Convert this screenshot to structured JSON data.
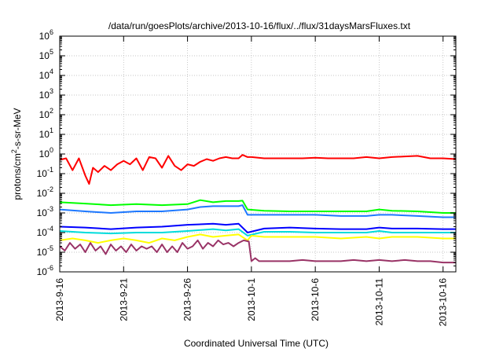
{
  "chart_data": {
    "type": "line",
    "title": "/data/run/goesPlots/archive/2013-10-16/flux/../flux/31daysMarsFluxes.txt",
    "xlabel": "Coordinated Universal Time (UTC)",
    "ylabel_main": "protons/cm",
    "ylabel_sup": "2",
    "ylabel_rest": "-s-sr-MeV",
    "yscale": "log",
    "ylim_exp": [
      -6,
      6
    ],
    "y_ticks": [
      {
        "base": "10",
        "exp": "-6"
      },
      {
        "base": "10",
        "exp": "-5"
      },
      {
        "base": "10",
        "exp": "-4"
      },
      {
        "base": "10",
        "exp": "-3"
      },
      {
        "base": "10",
        "exp": "-2"
      },
      {
        "base": "10",
        "exp": "-1"
      },
      {
        "base": "10",
        "exp": "0"
      },
      {
        "base": "10",
        "exp": "1"
      },
      {
        "base": "10",
        "exp": "2"
      },
      {
        "base": "10",
        "exp": "3"
      },
      {
        "base": "10",
        "exp": "4"
      },
      {
        "base": "10",
        "exp": "5"
      },
      {
        "base": "10",
        "exp": "6"
      }
    ],
    "x_range_days": [
      0,
      31
    ],
    "x_ticks": [
      {
        "label": "2013-9-16",
        "day": 0
      },
      {
        "label": "2013-9-21",
        "day": 5
      },
      {
        "label": "2013-9-26",
        "day": 10
      },
      {
        "label": "2013-10-1",
        "day": 15
      },
      {
        "label": "2013-10-6",
        "day": 20
      },
      {
        "label": "2013-10-11",
        "day": 25
      },
      {
        "label": "2013-10-16",
        "day": 30
      }
    ],
    "grid": true,
    "series": [
      {
        "color": "#ff0000",
        "points": [
          [
            0,
            0.5
          ],
          [
            0.5,
            0.6
          ],
          [
            1,
            0.15
          ],
          [
            1.5,
            0.6
          ],
          [
            2,
            0.08
          ],
          [
            2.3,
            0.03
          ],
          [
            2.6,
            0.2
          ],
          [
            3,
            0.12
          ],
          [
            3.5,
            0.25
          ],
          [
            4,
            0.15
          ],
          [
            4.5,
            0.3
          ],
          [
            5,
            0.45
          ],
          [
            5.5,
            0.3
          ],
          [
            6,
            0.6
          ],
          [
            6.5,
            0.15
          ],
          [
            7,
            0.7
          ],
          [
            7.5,
            0.6
          ],
          [
            8,
            0.2
          ],
          [
            8.5,
            0.8
          ],
          [
            9,
            0.25
          ],
          [
            9.5,
            0.15
          ],
          [
            10,
            0.3
          ],
          [
            10.5,
            0.25
          ],
          [
            11,
            0.4
          ],
          [
            11.5,
            0.55
          ],
          [
            12,
            0.45
          ],
          [
            12.5,
            0.6
          ],
          [
            13,
            0.7
          ],
          [
            13.5,
            0.6
          ],
          [
            14,
            0.6
          ],
          [
            14.3,
            0.9
          ],
          [
            14.7,
            0.7
          ],
          [
            15,
            0.7
          ],
          [
            16,
            0.6
          ],
          [
            17,
            0.6
          ],
          [
            18,
            0.6
          ],
          [
            19,
            0.6
          ],
          [
            20,
            0.65
          ],
          [
            21,
            0.6
          ],
          [
            22,
            0.6
          ],
          [
            23,
            0.6
          ],
          [
            24,
            0.7
          ],
          [
            25,
            0.6
          ],
          [
            26,
            0.7
          ],
          [
            27,
            0.75
          ],
          [
            28,
            0.8
          ],
          [
            29,
            0.6
          ],
          [
            30,
            0.6
          ],
          [
            31,
            0.55
          ]
        ]
      },
      {
        "color": "#00ff00",
        "points": [
          [
            0,
            0.0035
          ],
          [
            2,
            0.003
          ],
          [
            4,
            0.0025
          ],
          [
            6,
            0.0028
          ],
          [
            8,
            0.0025
          ],
          [
            10,
            0.0028
          ],
          [
            11,
            0.0045
          ],
          [
            12,
            0.0035
          ],
          [
            13,
            0.004
          ],
          [
            14,
            0.004
          ],
          [
            14.3,
            0.0042
          ],
          [
            14.7,
            0.0015
          ],
          [
            16,
            0.0013
          ],
          [
            18,
            0.0012
          ],
          [
            20,
            0.0012
          ],
          [
            22,
            0.0012
          ],
          [
            24,
            0.0012
          ],
          [
            25,
            0.0015
          ],
          [
            26,
            0.0013
          ],
          [
            28,
            0.0012
          ],
          [
            30,
            0.001
          ],
          [
            31,
            0.001
          ]
        ]
      },
      {
        "color": "#1e78ff",
        "points": [
          [
            0,
            0.0015
          ],
          [
            2,
            0.0012
          ],
          [
            4,
            0.001
          ],
          [
            6,
            0.0012
          ],
          [
            8,
            0.0012
          ],
          [
            10,
            0.0015
          ],
          [
            11,
            0.002
          ],
          [
            12,
            0.0022
          ],
          [
            13,
            0.0022
          ],
          [
            14,
            0.0022
          ],
          [
            14.3,
            0.0025
          ],
          [
            14.7,
            0.0008
          ],
          [
            16,
            0.0008
          ],
          [
            18,
            0.0008
          ],
          [
            20,
            0.0008
          ],
          [
            22,
            0.0007
          ],
          [
            24,
            0.0007
          ],
          [
            25,
            0.0008
          ],
          [
            26,
            0.0008
          ],
          [
            28,
            0.0007
          ],
          [
            30,
            0.0006
          ],
          [
            31,
            0.0006
          ]
        ]
      },
      {
        "color": "#0000ff",
        "points": [
          [
            0,
            0.0002
          ],
          [
            2,
            0.00018
          ],
          [
            4,
            0.00015
          ],
          [
            6,
            0.00018
          ],
          [
            8,
            0.0002
          ],
          [
            10,
            0.00025
          ],
          [
            12,
            0.00028
          ],
          [
            13,
            0.00025
          ],
          [
            14,
            0.00028
          ],
          [
            14.7,
            0.0001
          ],
          [
            16,
            0.00016
          ],
          [
            18,
            0.00018
          ],
          [
            20,
            0.00016
          ],
          [
            22,
            0.00015
          ],
          [
            24,
            0.00015
          ],
          [
            25,
            0.00018
          ],
          [
            26,
            0.00016
          ],
          [
            28,
            0.00016
          ],
          [
            30,
            0.00015
          ],
          [
            31,
            0.00015
          ]
        ]
      },
      {
        "color": "#00dcdc",
        "points": [
          [
            0,
            0.00012
          ],
          [
            2,
            0.0001
          ],
          [
            4,
            9e-05
          ],
          [
            6,
            0.0001
          ],
          [
            8,
            0.0001
          ],
          [
            10,
            0.00012
          ],
          [
            12,
            0.00015
          ],
          [
            13,
            0.00013
          ],
          [
            14,
            0.00015
          ],
          [
            14.7,
            7e-05
          ],
          [
            16,
            0.00011
          ],
          [
            18,
            0.00011
          ],
          [
            20,
            0.0001
          ],
          [
            22,
            0.0001
          ],
          [
            24,
            0.0001
          ],
          [
            25,
            0.00012
          ],
          [
            26,
            0.0001
          ],
          [
            28,
            0.0001
          ],
          [
            30,
            0.0001
          ],
          [
            31,
            0.0001
          ]
        ]
      },
      {
        "color": "#ffff00",
        "points": [
          [
            0,
            4e-05
          ],
          [
            1,
            5e-05
          ],
          [
            2,
            4e-05
          ],
          [
            3,
            3e-05
          ],
          [
            4,
            4e-05
          ],
          [
            5,
            5e-05
          ],
          [
            6,
            4e-05
          ],
          [
            7,
            3e-05
          ],
          [
            8,
            5e-05
          ],
          [
            9,
            4e-05
          ],
          [
            10,
            6e-05
          ],
          [
            11,
            8e-05
          ],
          [
            12,
            6e-05
          ],
          [
            13,
            7e-05
          ],
          [
            14,
            8e-05
          ],
          [
            14.7,
            4e-05
          ],
          [
            15,
            7e-05
          ],
          [
            16,
            6e-05
          ],
          [
            18,
            6e-05
          ],
          [
            20,
            6e-05
          ],
          [
            22,
            5e-05
          ],
          [
            24,
            6e-05
          ],
          [
            25,
            5e-05
          ],
          [
            26,
            6e-05
          ],
          [
            28,
            6e-05
          ],
          [
            30,
            5e-05
          ],
          [
            31,
            5e-05
          ]
        ]
      },
      {
        "color": "#993366",
        "points": [
          [
            0,
            2e-05
          ],
          [
            0.4,
            1.2e-05
          ],
          [
            0.8,
            3e-05
          ],
          [
            1.2,
            1.5e-05
          ],
          [
            1.6,
            2.5e-05
          ],
          [
            2,
            1e-05
          ],
          [
            2.4,
            3e-05
          ],
          [
            2.8,
            1.2e-05
          ],
          [
            3.2,
            2e-05
          ],
          [
            3.6,
            8e-06
          ],
          [
            4,
            2.5e-05
          ],
          [
            4.4,
            1.2e-05
          ],
          [
            4.8,
            2e-05
          ],
          [
            5.2,
            1e-05
          ],
          [
            5.6,
            2.5e-05
          ],
          [
            6,
            1.2e-05
          ],
          [
            6.4,
            2e-05
          ],
          [
            6.8,
            1.5e-05
          ],
          [
            7.2,
            2e-05
          ],
          [
            7.6,
            1e-05
          ],
          [
            8,
            2.5e-05
          ],
          [
            8.4,
            1e-05
          ],
          [
            8.8,
            2e-05
          ],
          [
            9.2,
            1e-05
          ],
          [
            9.6,
            3e-05
          ],
          [
            10,
            1.5e-05
          ],
          [
            10.4,
            2e-05
          ],
          [
            10.8,
            4e-05
          ],
          [
            11.2,
            1.5e-05
          ],
          [
            11.6,
            3e-05
          ],
          [
            12,
            2e-05
          ],
          [
            12.4,
            4e-05
          ],
          [
            12.8,
            2.5e-05
          ],
          [
            13.2,
            3e-05
          ],
          [
            13.6,
            2e-05
          ],
          [
            14,
            3e-05
          ],
          [
            14.4,
            4e-05
          ],
          [
            14.8,
            3.5e-05
          ],
          [
            15,
            3.5e-06
          ],
          [
            15.3,
            5e-06
          ],
          [
            15.6,
            3.5e-06
          ],
          [
            16,
            3.5e-06
          ],
          [
            17,
            3.5e-06
          ],
          [
            18,
            3.5e-06
          ],
          [
            19,
            4e-06
          ],
          [
            20,
            3.5e-06
          ],
          [
            21,
            3.5e-06
          ],
          [
            22,
            3.5e-06
          ],
          [
            23,
            4e-06
          ],
          [
            24,
            3.5e-06
          ],
          [
            25,
            4e-06
          ],
          [
            26,
            3.5e-06
          ],
          [
            27,
            4e-06
          ],
          [
            28,
            3.5e-06
          ],
          [
            29,
            3.5e-06
          ],
          [
            30,
            3e-06
          ],
          [
            31,
            3e-06
          ]
        ]
      }
    ]
  }
}
